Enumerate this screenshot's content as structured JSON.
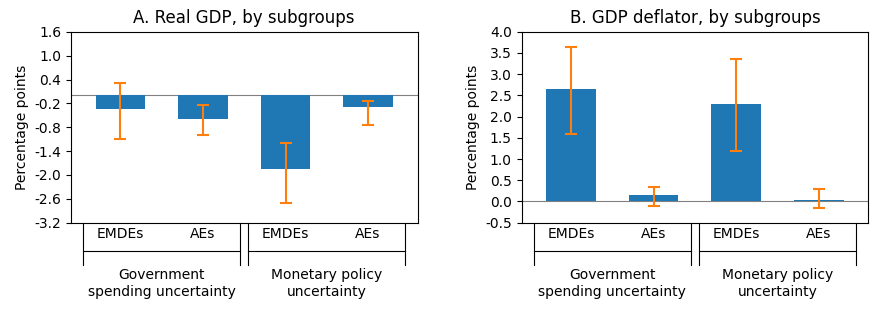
{
  "chart_data": [
    {
      "type": "bar",
      "title": "A. Real GDP, by subgroups",
      "ylabel": "Percentage points",
      "groups": [
        {
          "name": "Government\nspending uncertainty",
          "categories": [
            "EMDEs",
            "AEs"
          ]
        },
        {
          "name": "Monetary policy\nuncertainty",
          "categories": [
            "EMDEs",
            "AEs"
          ]
        }
      ],
      "values": [
        -0.35,
        -0.6,
        -1.85,
        -0.3
      ],
      "ci_low": [
        -1.1,
        -1.0,
        -2.7,
        -0.75
      ],
      "ci_high": [
        0.3,
        -0.25,
        -1.2,
        -0.15
      ],
      "ylim": [
        -3.2,
        1.6
      ],
      "yticks": [
        {
          "value": 1.6,
          "label": "1.6"
        },
        {
          "value": 1.0,
          "label": "1.0"
        },
        {
          "value": 0.4,
          "label": "0.4"
        },
        {
          "value": -0.2,
          "label": "-0.2"
        },
        {
          "value": -0.8,
          "label": "-0.8"
        },
        {
          "value": -1.4,
          "label": "-1.4"
        },
        {
          "value": -2.0,
          "label": "-2.0"
        },
        {
          "value": -2.6,
          "label": "-2.6"
        },
        {
          "value": -3.2,
          "label": "-3.2"
        }
      ],
      "grid": false
    },
    {
      "type": "bar",
      "title": "B. GDP deflator, by subgroups",
      "ylabel": "Percentage points",
      "groups": [
        {
          "name": "Government\nspending uncertainty",
          "categories": [
            "EMDEs",
            "AEs"
          ]
        },
        {
          "name": "Monetary policy\nuncertainty",
          "categories": [
            "EMDEs",
            "AEs"
          ]
        }
      ],
      "values": [
        2.65,
        0.15,
        2.3,
        0.03
      ],
      "ci_low": [
        1.6,
        -0.1,
        1.2,
        -0.15
      ],
      "ci_high": [
        3.65,
        0.35,
        3.35,
        0.3
      ],
      "ylim": [
        -0.5,
        4.0
      ],
      "yticks": [
        {
          "value": 4.0,
          "label": "4.0"
        },
        {
          "value": 3.5,
          "label": "3.5"
        },
        {
          "value": 3.0,
          "label": "3.0"
        },
        {
          "value": 2.5,
          "label": "2.5"
        },
        {
          "value": 2.0,
          "label": "2.0"
        },
        {
          "value": 1.5,
          "label": "1.5"
        },
        {
          "value": 1.0,
          "label": "1.0"
        },
        {
          "value": 0.5,
          "label": "0.5"
        },
        {
          "value": 0.0,
          "label": "0.0"
        },
        {
          "value": -0.5,
          "label": "-0.5"
        }
      ],
      "grid": false
    }
  ]
}
